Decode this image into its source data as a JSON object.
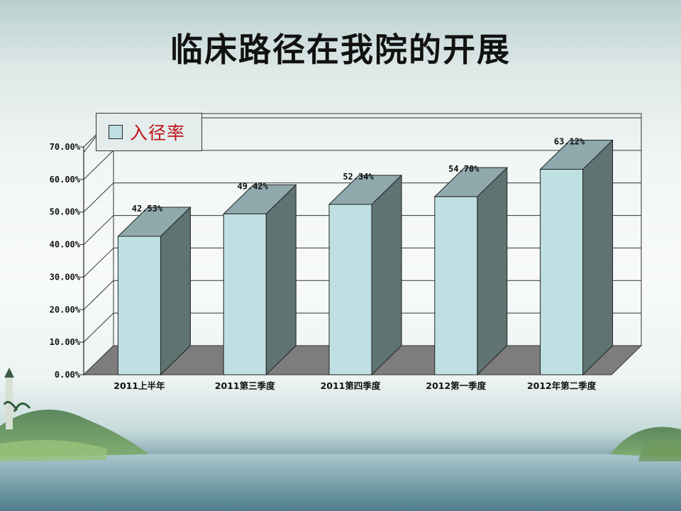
{
  "slide": {
    "title": "临床路径在我院的开展"
  },
  "colors": {
    "bar_front": "#bfe0e3",
    "bar_top": "#8fa9ad",
    "bar_side": "#5f7373",
    "floor": "#7d7d7d",
    "legend_text": "#c0141a"
  },
  "chart_data": {
    "type": "bar",
    "title": "",
    "categories": [
      "2011上半年",
      "2011第三季度",
      "2011第四季度",
      "2012第一季度",
      "2012年第二季度"
    ],
    "series": [
      {
        "name": "入径率",
        "values": [
          42.53,
          49.42,
          52.34,
          54.7,
          63.12
        ]
      }
    ],
    "data_labels": [
      "42.53%",
      "49.42%",
      "52.34%",
      "54.70%",
      "63.12%"
    ],
    "y_ticks": [
      "0.00%",
      "10.00%",
      "20.00%",
      "30.00%",
      "40.00%",
      "50.00%",
      "60.00%",
      "70.00%"
    ],
    "ylim": [
      0,
      70
    ],
    "grid": true,
    "legend_position": "top-left",
    "three_d": true
  }
}
